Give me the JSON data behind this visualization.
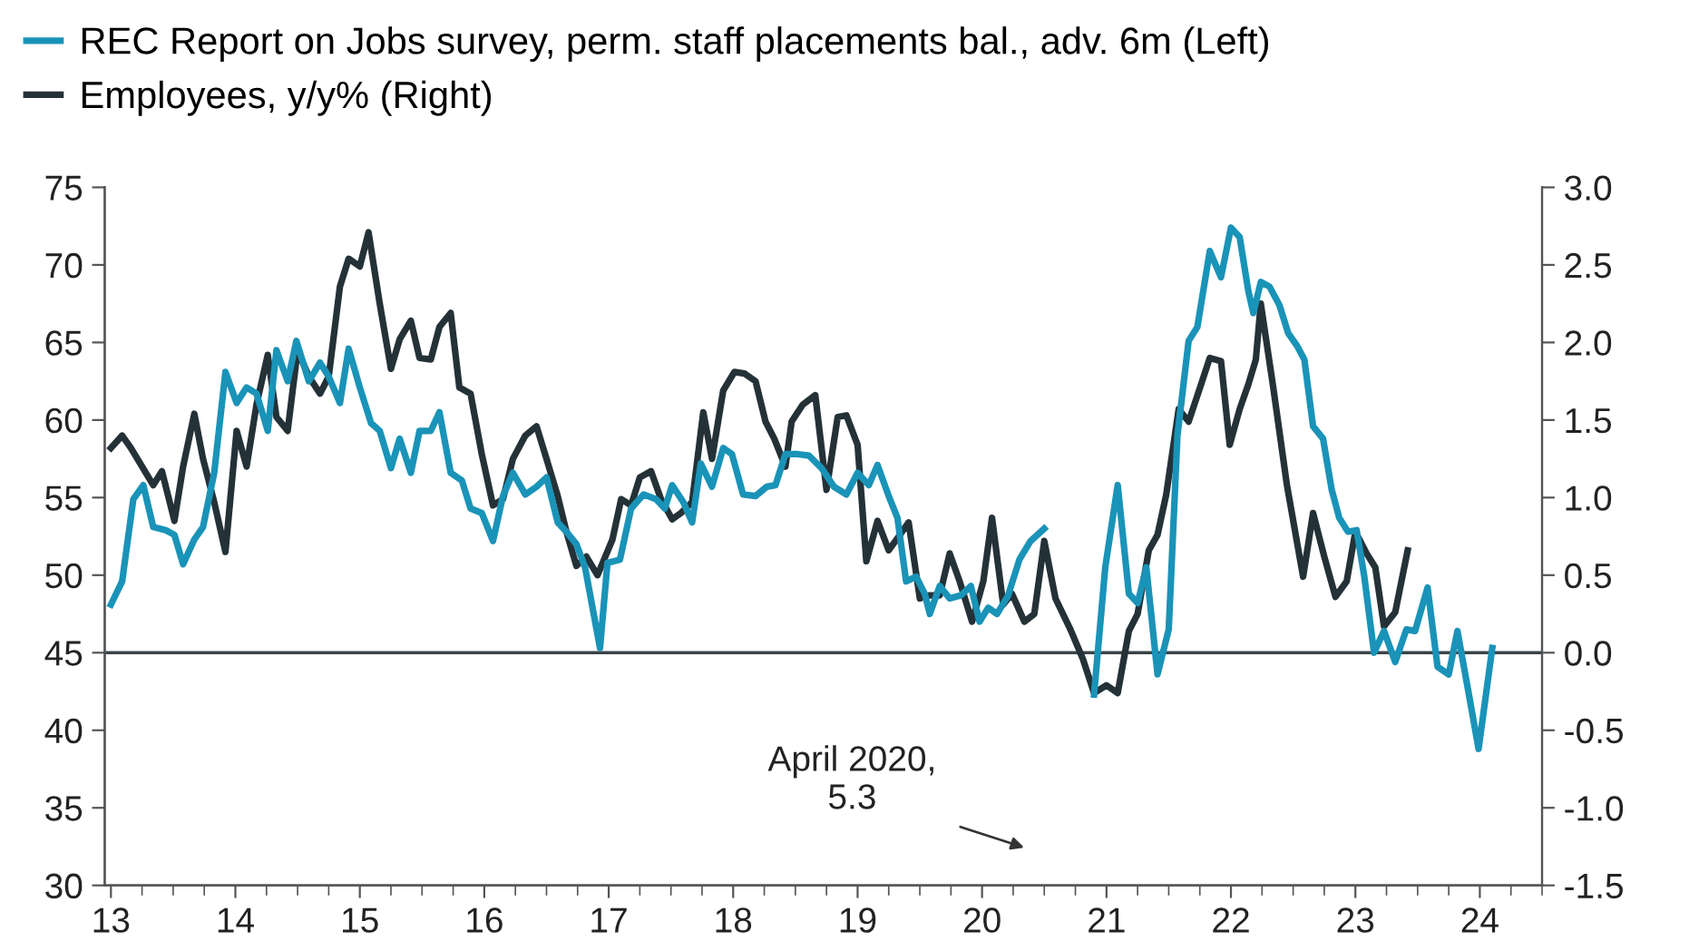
{
  "chart_data": {
    "type": "line",
    "series": [
      {
        "name": "REC Report on Jobs survey, perm. staff placements bal., adv. 6m (Left)",
        "color": "#1a93b8",
        "axis": "y",
        "x": [
          13.0,
          13.09,
          13.18,
          13.26,
          13.34,
          13.44,
          13.51,
          13.58,
          13.67,
          13.74,
          13.83,
          13.92,
          14.01,
          14.09,
          14.17,
          14.26,
          14.33,
          14.42,
          14.49,
          14.59,
          14.68,
          14.75,
          14.84,
          14.91,
          15.0,
          15.09,
          15.16,
          15.25,
          15.32,
          15.41,
          15.48,
          15.57,
          15.64,
          15.73,
          15.82,
          15.89,
          15.98,
          16.07,
          16.15,
          16.23,
          16.33,
          16.42,
          16.5,
          16.59,
          16.66,
          16.74,
          16.81,
          16.93,
          16.99,
          17.09,
          17.18,
          17.28,
          17.38,
          17.45,
          17.51,
          17.6,
          17.67,
          17.74,
          17.83,
          17.92,
          17.99,
          18.08,
          18.18,
          18.27,
          18.34,
          18.42,
          18.52,
          18.61,
          18.71,
          18.81,
          18.91,
          19.0,
          19.09,
          19.16,
          19.25,
          19.32,
          19.39,
          19.47,
          19.54,
          19.58,
          19.66,
          19.74,
          19.83,
          19.91,
          19.98,
          20.05,
          20.12,
          20.21,
          20.3,
          20.39,
          20.5,
          20.71,
          20.9,
          20.99,
          21.09,
          21.18,
          21.25,
          21.32,
          21.41,
          21.5,
          21.57,
          21.66,
          21.73,
          21.83,
          21.92,
          22.0,
          22.07,
          22.14,
          22.18,
          22.24,
          22.31,
          22.39,
          22.46,
          22.53,
          22.59,
          22.66,
          22.74,
          22.81,
          22.87,
          22.94,
          23.01,
          23.07,
          23.15,
          23.23,
          23.32,
          23.41,
          23.48,
          23.58,
          23.66,
          23.75,
          23.82,
          23.91,
          23.99,
          24.1
        ],
        "values": [
          48.1,
          49.6,
          54.9,
          55.8,
          53.1,
          52.9,
          52.6,
          50.7,
          52.3,
          53.1,
          56.6,
          63.1,
          61.1,
          62.1,
          61.7,
          59.3,
          64.5,
          62.5,
          65.1,
          62.5,
          63.7,
          62.8,
          61.1,
          64.6,
          62.1,
          59.8,
          59.3,
          56.9,
          58.8,
          56.6,
          59.3,
          59.3,
          60.5,
          56.6,
          56.1,
          54.3,
          54.0,
          52.2,
          55.1,
          56.6,
          55.2,
          55.7,
          56.3,
          53.4,
          52.8,
          52.0,
          50.5,
          45.3,
          50.8,
          51.0,
          54.3,
          55.2,
          54.9,
          54.3,
          55.8,
          54.7,
          53.4,
          57.2,
          55.7,
          58.2,
          57.8,
          55.2,
          55.1,
          55.7,
          55.8,
          57.8,
          57.8,
          57.7,
          56.9,
          55.7,
          55.2,
          56.6,
          55.8,
          57.1,
          55.1,
          53.7,
          49.6,
          49.9,
          48.8,
          47.5,
          49.3,
          48.5,
          48.7,
          49.3,
          47.0,
          47.9,
          47.5,
          48.7,
          51.0,
          52.2,
          53.0,
          null,
          42.3,
          50.5,
          55.8,
          48.8,
          48.2,
          50.5,
          43.6,
          46.5,
          59.0,
          65.1,
          66.0,
          70.9,
          69.2,
          72.4,
          71.8,
          68.3,
          66.9,
          68.9,
          68.6,
          67.4,
          65.6,
          64.8,
          63.9,
          59.6,
          58.8,
          55.5,
          53.7,
          52.8,
          52.9,
          50.0,
          45.0,
          46.4,
          44.4,
          46.5,
          46.4,
          49.2,
          44.1,
          43.6,
          46.4,
          42.4,
          38.8,
          45.3
        ]
      },
      {
        "name": "Employees, y/y% (Right)",
        "color": "#243238",
        "axis": "y2",
        "x": [
          13.0,
          13.09,
          13.16,
          13.25,
          13.34,
          13.41,
          13.51,
          13.58,
          13.67,
          13.74,
          13.83,
          13.92,
          14.01,
          14.09,
          14.17,
          14.26,
          14.33,
          14.42,
          14.5,
          14.59,
          14.68,
          14.75,
          14.84,
          14.91,
          15.0,
          15.07,
          15.16,
          15.25,
          15.32,
          15.41,
          15.48,
          15.57,
          15.64,
          15.73,
          15.8,
          15.89,
          15.98,
          16.07,
          16.15,
          16.23,
          16.33,
          16.42,
          16.5,
          16.59,
          16.66,
          16.74,
          16.82,
          16.91,
          17.03,
          17.1,
          17.18,
          17.25,
          17.34,
          17.42,
          17.51,
          17.58,
          17.67,
          17.76,
          17.83,
          17.92,
          18.01,
          18.09,
          18.18,
          18.26,
          18.33,
          18.42,
          18.47,
          18.56,
          18.66,
          18.75,
          18.84,
          18.91,
          19.0,
          19.07,
          19.16,
          19.25,
          19.34,
          19.41,
          19.5,
          19.58,
          19.66,
          19.74,
          19.82,
          19.92,
          20.01,
          20.08,
          20.17,
          20.24,
          20.34,
          20.42,
          20.5,
          20.59,
          20.71,
          20.81,
          20.9,
          21.0,
          21.09,
          21.18,
          21.25,
          21.34,
          21.41,
          21.48,
          21.58,
          21.66,
          21.76,
          21.83,
          21.92,
          21.99,
          22.07,
          22.14,
          22.2,
          22.24,
          22.34,
          22.45,
          22.58,
          22.66,
          22.75,
          22.84,
          22.93,
          23.0,
          23.09,
          23.16,
          23.23,
          23.32,
          23.42
        ],
        "values": [
          1.32,
          1.4,
          1.32,
          1.2,
          1.08,
          1.17,
          0.85,
          1.2,
          1.54,
          1.25,
          0.97,
          0.65,
          1.43,
          1.2,
          1.6,
          1.92,
          1.52,
          1.43,
          1.95,
          1.78,
          1.67,
          1.78,
          2.36,
          2.54,
          2.49,
          2.71,
          2.25,
          1.83,
          2.02,
          2.14,
          1.9,
          1.89,
          2.1,
          2.19,
          1.71,
          1.67,
          1.28,
          0.95,
          0.99,
          1.25,
          1.4,
          1.46,
          1.25,
          1.01,
          0.78,
          0.56,
          0.62,
          0.5,
          0.73,
          0.99,
          0.95,
          1.13,
          1.17,
          0.99,
          0.86,
          0.9,
          0.97,
          1.55,
          1.25,
          1.69,
          1.81,
          1.8,
          1.75,
          1.49,
          1.38,
          1.2,
          1.49,
          1.6,
          1.66,
          1.05,
          1.52,
          1.53,
          1.34,
          0.59,
          0.85,
          0.66,
          0.76,
          0.84,
          0.35,
          0.37,
          0.37,
          0.64,
          0.46,
          0.2,
          0.46,
          0.87,
          0.31,
          0.38,
          0.2,
          0.25,
          0.72,
          0.35,
          0.15,
          -0.04,
          -0.26,
          -0.21,
          -0.26,
          0.14,
          0.25,
          0.66,
          0.76,
          1.02,
          1.57,
          1.49,
          1.73,
          1.9,
          1.88,
          1.34,
          1.57,
          1.73,
          1.89,
          2.25,
          1.71,
          1.08,
          0.49,
          0.9,
          0.62,
          0.36,
          0.46,
          0.78,
          0.64,
          0.55,
          0.17,
          0.26,
          0.66
        ]
      }
    ],
    "xlim": [
      12.95,
      24.5
    ],
    "xticks": [
      13,
      14,
      15,
      16,
      17,
      18,
      19,
      20,
      21,
      22,
      23,
      24
    ],
    "ylim": [
      30,
      75
    ],
    "yticks": [
      30,
      35,
      40,
      45,
      50,
      55,
      60,
      65,
      70,
      75
    ],
    "y2lim": [
      -1.5,
      3.0
    ],
    "y2ticks": [
      {
        "value": -1.5,
        "label": "-1.5"
      },
      {
        "value": -1.0,
        "label": "-1.0"
      },
      {
        "value": -0.5,
        "label": "-0.5"
      },
      {
        "value": 0.0,
        "label": "0.0"
      },
      {
        "value": 0.5,
        "label": "0.5"
      },
      {
        "value": 1.0,
        "label": "1.0"
      },
      {
        "value": 1.5,
        "label": "1.5"
      },
      {
        "value": 2.0,
        "label": "2.0"
      },
      {
        "value": 2.5,
        "label": "2.5"
      },
      {
        "value": 3.0,
        "label": "3.0"
      }
    ],
    "ref_lines": [
      {
        "axis": "y2",
        "value": 0.0,
        "color": "#3a4448"
      }
    ],
    "annotations": [
      "April 2020,\n5.3"
    ],
    "legend": "top left",
    "grid": false,
    "marker": "none",
    "line_style": "solid"
  }
}
